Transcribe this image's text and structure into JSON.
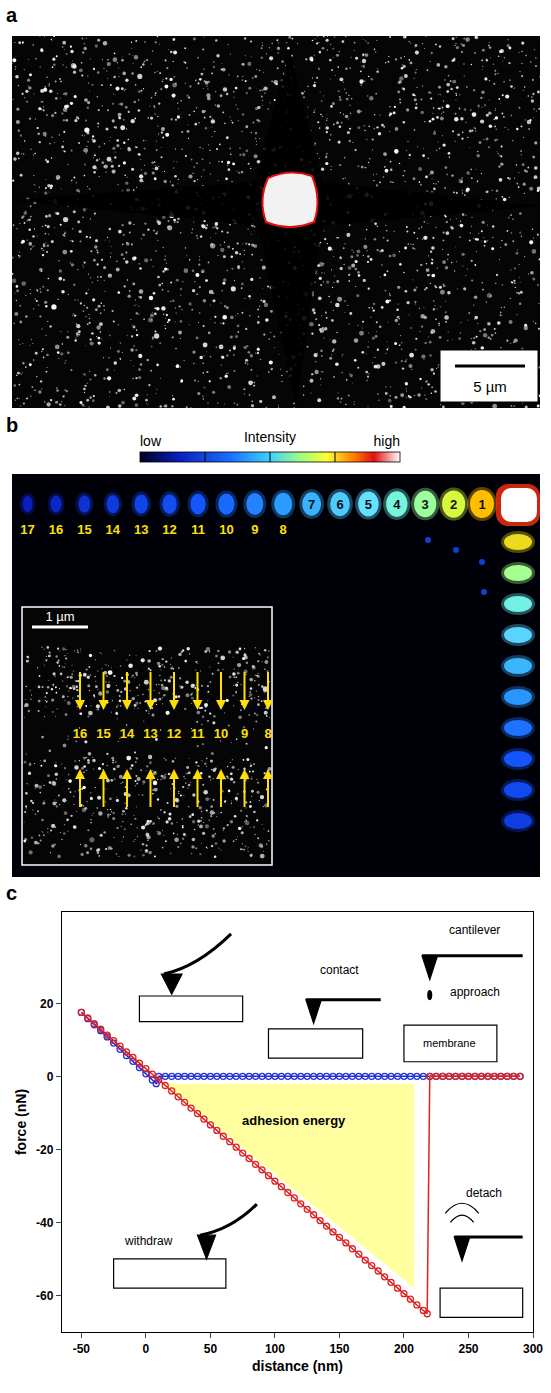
{
  "panel_a": {
    "label": "a",
    "scale_bar": "5 µm"
  },
  "panel_b": {
    "label": "b",
    "colorbar": {
      "low": "low",
      "title": "Intensity",
      "high": "high"
    },
    "spot_labels": [
      1,
      2,
      3,
      4,
      5,
      6,
      7,
      8,
      9,
      10,
      11,
      12,
      13,
      14,
      15,
      16,
      17
    ],
    "inset": {
      "scale_bar": "1 µm",
      "labels": [
        16,
        15,
        14,
        13,
        12,
        11,
        10,
        9,
        8
      ]
    }
  },
  "chart_data": {
    "label": "c",
    "type": "line",
    "x_label": "distance (nm)",
    "y_label": "force (nN)",
    "xlim": [
      -65,
      300
    ],
    "xticks": [
      -50,
      0,
      50,
      100,
      150,
      200,
      250,
      300
    ],
    "ylim": [
      -70,
      45
    ],
    "yticks": [
      -60,
      -40,
      -20,
      0,
      20
    ],
    "grid": false,
    "annotations": [
      "contact",
      "cantilever",
      "approach",
      "membrane",
      "withdraw",
      "detach",
      "adhesion energy"
    ],
    "series": [
      {
        "type": "area",
        "color": "#ffffa0",
        "x": [
          14,
          208,
          208
        ],
        "values": [
          -2,
          -2,
          -58
        ]
      },
      {
        "type": "line",
        "color": "#2233dd",
        "marker": "circle-open",
        "line_style": "solid",
        "x": [
          290,
          285,
          280,
          275,
          270,
          265,
          260,
          255,
          250,
          245,
          240,
          235,
          230,
          225,
          220,
          215,
          210,
          205,
          200,
          195,
          190,
          185,
          180,
          175,
          170,
          165,
          160,
          155,
          150,
          145,
          140,
          135,
          130,
          125,
          120,
          115,
          110,
          105,
          100,
          95,
          90,
          85,
          80,
          75,
          70,
          65,
          60,
          55,
          50,
          45,
          40,
          35,
          30,
          25,
          20,
          15,
          10,
          8,
          5,
          0,
          -5,
          -10,
          -15,
          -20,
          -25,
          -30,
          -35,
          -40,
          -45,
          -50
        ],
        "values": [
          0,
          0,
          0,
          0,
          0,
          0,
          0,
          0,
          0,
          0,
          0,
          0,
          0,
          0,
          0,
          0,
          0,
          0,
          0,
          0,
          0,
          0,
          0,
          0,
          0,
          0,
          0,
          0,
          0,
          0,
          0,
          0,
          0,
          0,
          0,
          0,
          0,
          0,
          0,
          0,
          0,
          0,
          0,
          0,
          0,
          0,
          0,
          0,
          0,
          0,
          0,
          0,
          0,
          0,
          0,
          0,
          0,
          -2.0,
          -1.0,
          0.7,
          2.4,
          4.1,
          5.7,
          7.4,
          9.1,
          10.8,
          12.5,
          14.1,
          15.8,
          17.5
        ]
      },
      {
        "type": "line",
        "color": "#dd2222",
        "marker": "circle-open",
        "line_style": "solid",
        "x": [
          -50,
          -45,
          -40,
          -35,
          -30,
          -25,
          -20,
          -15,
          -10,
          -5,
          0,
          5,
          10,
          15,
          20,
          25,
          30,
          35,
          40,
          45,
          50,
          55,
          60,
          65,
          70,
          75,
          80,
          85,
          90,
          95,
          100,
          105,
          110,
          115,
          120,
          125,
          130,
          135,
          140,
          145,
          150,
          155,
          160,
          165,
          170,
          175,
          180,
          185,
          190,
          195,
          200,
          205,
          210,
          215,
          218,
          220,
          225,
          230,
          235,
          240,
          245,
          250,
          255,
          260,
          265,
          270,
          275,
          280,
          285,
          290
        ],
        "values": [
          17.5,
          16.0,
          14.4,
          12.9,
          11.3,
          9.8,
          8.3,
          6.7,
          5.2,
          3.6,
          2.1,
          0.6,
          -1.0,
          -2.5,
          -4.0,
          -5.6,
          -7.1,
          -8.7,
          -10.2,
          -11.7,
          -13.3,
          -14.8,
          -16.4,
          -17.9,
          -19.4,
          -21.0,
          -22.5,
          -24.1,
          -25.6,
          -27.2,
          -28.7,
          -30.2,
          -31.8,
          -33.3,
          -34.9,
          -36.4,
          -37.9,
          -39.5,
          -41.0,
          -42.6,
          -44.1,
          -45.6,
          -47.2,
          -48.7,
          -50.3,
          -51.8,
          -53.3,
          -54.9,
          -56.4,
          -58.0,
          -59.5,
          -61.0,
          -62.6,
          -64.1,
          -65.0,
          0,
          0,
          0,
          0,
          0,
          0,
          0,
          0,
          0,
          0,
          0,
          0,
          0,
          0,
          0
        ]
      }
    ]
  }
}
